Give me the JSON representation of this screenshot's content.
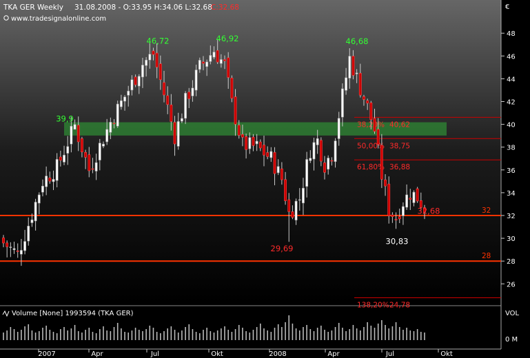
{
  "header": {
    "symbol": "TKA GER Weekly",
    "quote": "31.08.2008 - O:33.95 H:34.06 L:32.68",
    "change": "C:32.68",
    "source": "www.tradesignalonline.com"
  },
  "volume_panel": {
    "label": "Volume [None] 1993594 (TKA GER)",
    "axis_labels": [
      "VOL",
      "0 M"
    ]
  },
  "colors": {
    "background": "#000000",
    "up_candle": "#ffffff",
    "down_candle": "#cc0000",
    "peak_label": "#33ff33",
    "low_label_red": "#ff2a2a",
    "horizontal_line": "#ff3300",
    "fib_line": "#cc0000",
    "zone": "#2e7d32"
  },
  "chart_data": {
    "type": "candlestick",
    "title": "TKA GER Weekly",
    "currency": "€",
    "ylim": [
      24,
      50
    ],
    "y_ticks": [
      26,
      28,
      30,
      32,
      34,
      36,
      38,
      40,
      42,
      44,
      46,
      48
    ],
    "x_ticks": [
      "2007",
      "Apr",
      "Jul",
      "Okt",
      "2008",
      "Apr",
      "Jul",
      "Okt"
    ],
    "horizontal_lines": [
      {
        "value": 32,
        "label": "32"
      },
      {
        "value": 28,
        "label": "28"
      }
    ],
    "support_zone": {
      "from": 39.2,
      "to": 40.0
    },
    "fibonacci": [
      {
        "label": "38,20%",
        "value": 40.62,
        "value_label": "40,62"
      },
      {
        "label": "50,00%",
        "value": 38.75,
        "value_label": "38,75"
      },
      {
        "label": "61,80%",
        "value": 36.88,
        "value_label": "36,88"
      },
      {
        "label": "138,20%",
        "value": 24.78,
        "value_label": "24,78"
      }
    ],
    "annotations": [
      {
        "text": "39,9",
        "value": 39.9,
        "kind": "peak"
      },
      {
        "text": "46,72",
        "value": 46.72,
        "kind": "peak"
      },
      {
        "text": "46,92",
        "value": 46.92,
        "kind": "peak"
      },
      {
        "text": "46,68",
        "value": 46.68,
        "kind": "peak"
      },
      {
        "text": "29,69",
        "value": 29.69,
        "kind": "low"
      },
      {
        "text": "30,83",
        "value": 30.83,
        "kind": "low2"
      },
      {
        "text": "32,68",
        "value": 32.68,
        "kind": "last"
      }
    ],
    "close_path": [
      [
        0,
        29.6
      ],
      [
        4,
        28.6
      ],
      [
        7,
        31.2
      ],
      [
        11,
        35.0
      ],
      [
        15,
        36.2
      ],
      [
        20,
        39.9
      ],
      [
        24,
        36.0
      ],
      [
        30,
        40.2
      ],
      [
        35,
        43.0
      ],
      [
        39,
        45.3
      ],
      [
        42,
        46.2
      ],
      [
        46,
        41.5
      ],
      [
        48,
        39.0
      ],
      [
        51,
        42.0
      ],
      [
        55,
        45.0
      ],
      [
        59,
        46.5
      ],
      [
        62,
        45.2
      ],
      [
        64,
        41.8
      ],
      [
        67,
        38.2
      ],
      [
        71,
        38.0
      ],
      [
        75,
        37.0
      ],
      [
        78,
        35.2
      ],
      [
        80,
        32.2
      ],
      [
        83,
        33.5
      ],
      [
        86,
        37.8
      ],
      [
        88,
        38.6
      ],
      [
        90,
        36.5
      ],
      [
        92,
        37.5
      ],
      [
        95,
        42.5
      ],
      [
        97,
        45.8
      ],
      [
        100,
        43.2
      ],
      [
        102,
        41.5
      ],
      [
        104,
        39.5
      ],
      [
        106,
        35.5
      ],
      [
        108,
        32.5
      ],
      [
        110,
        31.8
      ],
      [
        112,
        33.2
      ],
      [
        114,
        34.0
      ],
      [
        116,
        33.6
      ],
      [
        118,
        32.68
      ]
    ],
    "forced_extremes": {
      "20": 39.9,
      "42": 46.72,
      "58": 46.92,
      "80": 29.69,
      "97": 46.68,
      "110": 30.83
    },
    "weeks": 118,
    "volume": [
      1.1,
      1.4,
      1.9,
      1.6,
      1.2,
      1.5,
      2.0,
      2.3,
      1.4,
      1.1,
      1.3,
      1.8,
      2.1,
      1.5,
      1.2,
      1.0,
      1.6,
      1.9,
      1.4,
      1.7,
      2.2,
      1.3,
      1.1,
      1.5,
      1.8,
      1.2,
      1.0,
      1.6,
      2.0,
      1.4,
      1.3,
      1.9,
      2.5,
      1.7,
      1.2,
      1.1,
      1.4,
      1.8,
      1.5,
      1.3,
      1.6,
      2.1,
      1.8,
      1.2,
      1.0,
      1.3,
      1.7,
      2.0,
      1.5,
      1.1,
      1.4,
      1.9,
      2.3,
      1.6,
      1.2,
      1.0,
      1.5,
      1.8,
      1.3,
      1.1,
      1.4,
      1.7,
      2.0,
      1.5,
      1.2,
      1.6,
      2.2,
      1.8,
      1.3,
      1.1,
      1.5,
      1.9,
      2.4,
      1.7,
      1.4,
      1.2,
      1.8,
      2.3,
      1.9,
      2.6,
      3.6,
      2.4,
      1.7,
      1.4,
      1.9,
      2.2,
      1.6,
      1.3,
      1.8,
      2.1,
      1.5,
      1.2,
      1.4,
      1.9,
      2.5,
      1.8,
      1.3,
      1.6,
      2.2,
      1.7,
      1.4,
      1.9,
      2.6,
      2.1,
      1.8,
      2.4,
      2.9,
      2.2,
      1.7,
      2.0,
      2.6,
      1.9,
      1.5,
      1.8,
      1.4,
      1.3,
      1.6,
      1.2,
      1.1
    ]
  }
}
